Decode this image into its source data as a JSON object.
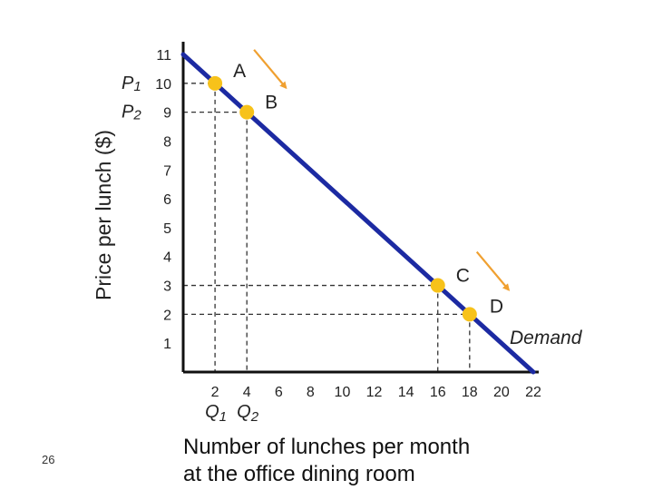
{
  "slide_number": "26",
  "chart_data": {
    "type": "line",
    "title": "",
    "xlabel_line1": "Number of lunches per month",
    "xlabel_line2": "at the office dining room",
    "ylabel": "Price per lunch ($)",
    "xlim": [
      0,
      22
    ],
    "ylim": [
      0,
      11
    ],
    "xticks": [
      2,
      4,
      6,
      8,
      10,
      12,
      14,
      16,
      18,
      20,
      22
    ],
    "yticks": [
      1,
      2,
      3,
      4,
      5,
      6,
      7,
      8,
      9,
      10,
      11
    ],
    "series": [
      {
        "name": "Demand",
        "x": [
          0,
          22
        ],
        "y": [
          11,
          0
        ]
      }
    ],
    "points": [
      {
        "label": "A",
        "x": 2,
        "y": 10
      },
      {
        "label": "B",
        "x": 4,
        "y": 9
      },
      {
        "label": "C",
        "x": 16,
        "y": 3
      },
      {
        "label": "D",
        "x": 18,
        "y": 2
      }
    ],
    "price_symbols": [
      {
        "letter": "P",
        "sub": "1",
        "y": 10
      },
      {
        "letter": "P",
        "sub": "2",
        "y": 9
      }
    ],
    "quantity_symbols": [
      {
        "letter": "Q",
        "sub": "1",
        "x": 2
      },
      {
        "letter": "Q",
        "sub": "2",
        "x": 4
      }
    ],
    "demand_label": "Demand",
    "colors": {
      "demand_line": "#1c2aa2",
      "points": "#f7c21a",
      "arrows": "#f0a030",
      "axes": "#111111",
      "guides": "#333333"
    }
  }
}
